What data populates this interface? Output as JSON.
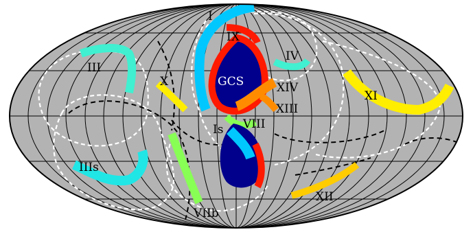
{
  "colors": {
    "sky": "#b3b3b3",
    "grid": "#000000",
    "outline": "#000000",
    "great_circle_white": "#ffffff",
    "great_circle_black": "#000000",
    "region_cyan": "#00c8ff",
    "region_light_cyan": "#40f0d0",
    "region_red": "#ff1a00",
    "region_dark_blue": "#00008c",
    "region_orange": "#ff8c00",
    "region_yellow": "#ffee00",
    "region_gold": "#ffcc00",
    "region_lime": "#88ff55",
    "region_aqua": "#20e6e6"
  },
  "labels": {
    "I": "I",
    "IX": "IX",
    "IV": "IV",
    "III": "III",
    "X": "X",
    "GCS": "GCS",
    "XIV": "XIV",
    "XIII": "XIII",
    "XI": "XI",
    "Is": "Is",
    "VIII": "VIII",
    "IIIs": "IIIs",
    "XII": "XII",
    "VIIb": "VIIb"
  }
}
